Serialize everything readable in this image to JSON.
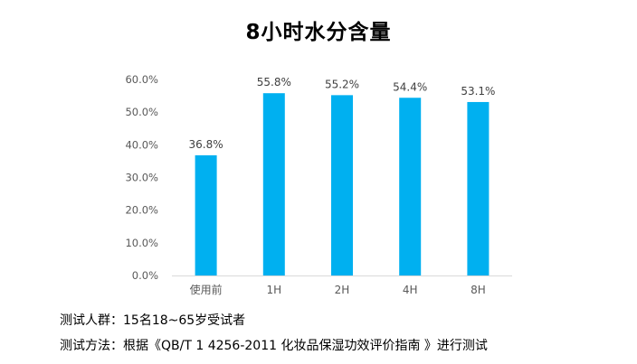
{
  "colors": {
    "bar": "#00B0F0",
    "axis_line": "#D9D9D9",
    "tick_text": "#595959"
  },
  "chart_data": {
    "type": "bar",
    "title": "8小时水分含量",
    "categories": [
      "使用前",
      "1H",
      "2H",
      "4H",
      "8H"
    ],
    "values": [
      36.8,
      55.8,
      55.2,
      54.4,
      53.1
    ],
    "data_labels": [
      "36.8%",
      "55.8%",
      "55.2%",
      "54.4%",
      "53.1%"
    ],
    "yticks": [
      "0.0%",
      "10.0%",
      "20.0%",
      "30.0%",
      "40.0%",
      "50.0%",
      "60.0%"
    ],
    "ylim": [
      0,
      60
    ],
    "grid": false,
    "legend": "none"
  },
  "notes": {
    "subjects": "测试人群：15名18~65岁受试者",
    "method": "测试方法：根据《QB/T 1 4256-2011 化妆品保湿功效评价指南 》进行测试"
  }
}
